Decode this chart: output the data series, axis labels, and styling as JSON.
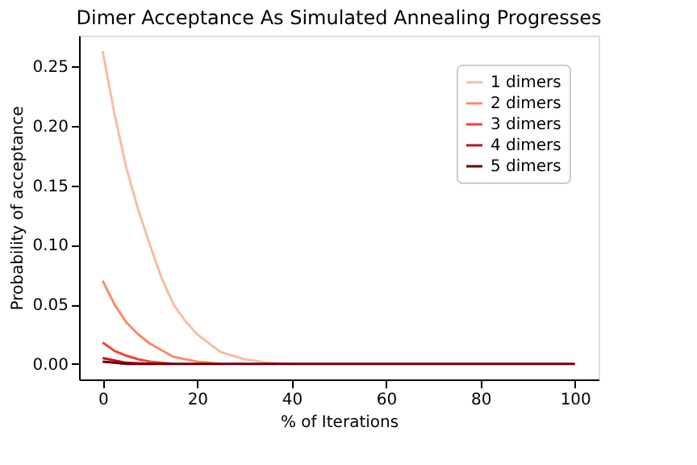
{
  "chart_data": {
    "type": "line",
    "title": "Dimer Acceptance As Simulated Annealing Progresses",
    "xlabel": "% of Iterations",
    "ylabel": "Probability of acceptance",
    "xlim": [
      -5,
      105
    ],
    "ylim": [
      -0.013,
      0.276
    ],
    "xticks": [
      0,
      20,
      40,
      60,
      80,
      100
    ],
    "yticks": [
      {
        "value": 0,
        "label": "0.00"
      },
      {
        "value": 0.05,
        "label": "0.05"
      },
      {
        "value": 0.1,
        "label": "0.10"
      },
      {
        "value": 0.15,
        "label": "0.15"
      },
      {
        "value": 0.2,
        "label": "0.20"
      },
      {
        "value": 0.25,
        "label": "0.25"
      }
    ],
    "grid": false,
    "legend": "top right",
    "marker": "none",
    "line_style": "solid",
    "series": [
      {
        "name": "1 dimers",
        "color": "#fcbba1",
        "x": [
          0,
          2.5,
          5,
          7.5,
          10,
          12.5,
          15,
          17.5,
          20,
          25,
          30,
          35,
          40
        ],
        "values": [
          0.263,
          0.21,
          0.165,
          0.13,
          0.1,
          0.072,
          0.05,
          0.036,
          0.025,
          0.01,
          0.004,
          0.001,
          0
        ]
      },
      {
        "name": "2 dimers",
        "color": "#fc8a6a",
        "x": [
          0,
          2.5,
          5,
          7.5,
          10,
          15,
          20,
          25
        ],
        "values": [
          0.07,
          0.05,
          0.035,
          0.025,
          0.017,
          0.006,
          0.002,
          0
        ]
      },
      {
        "name": "3 dimers",
        "color": "#f14432",
        "x": [
          0,
          2.5,
          5,
          7.5,
          10,
          15
        ],
        "values": [
          0.018,
          0.011,
          0.007,
          0.004,
          0.002,
          0
        ]
      },
      {
        "name": "4 dimers",
        "color": "#bc141a",
        "x": [
          0,
          2.5,
          5,
          10
        ],
        "values": [
          0.005,
          0.003,
          0.001,
          0
        ]
      },
      {
        "name": "5 dimers",
        "color": "#67000d",
        "x": [
          0,
          2.5,
          5,
          10,
          20,
          40,
          60,
          80,
          100
        ],
        "values": [
          0.002,
          0.001,
          0,
          0,
          0,
          0,
          0,
          0,
          0
        ]
      }
    ]
  }
}
